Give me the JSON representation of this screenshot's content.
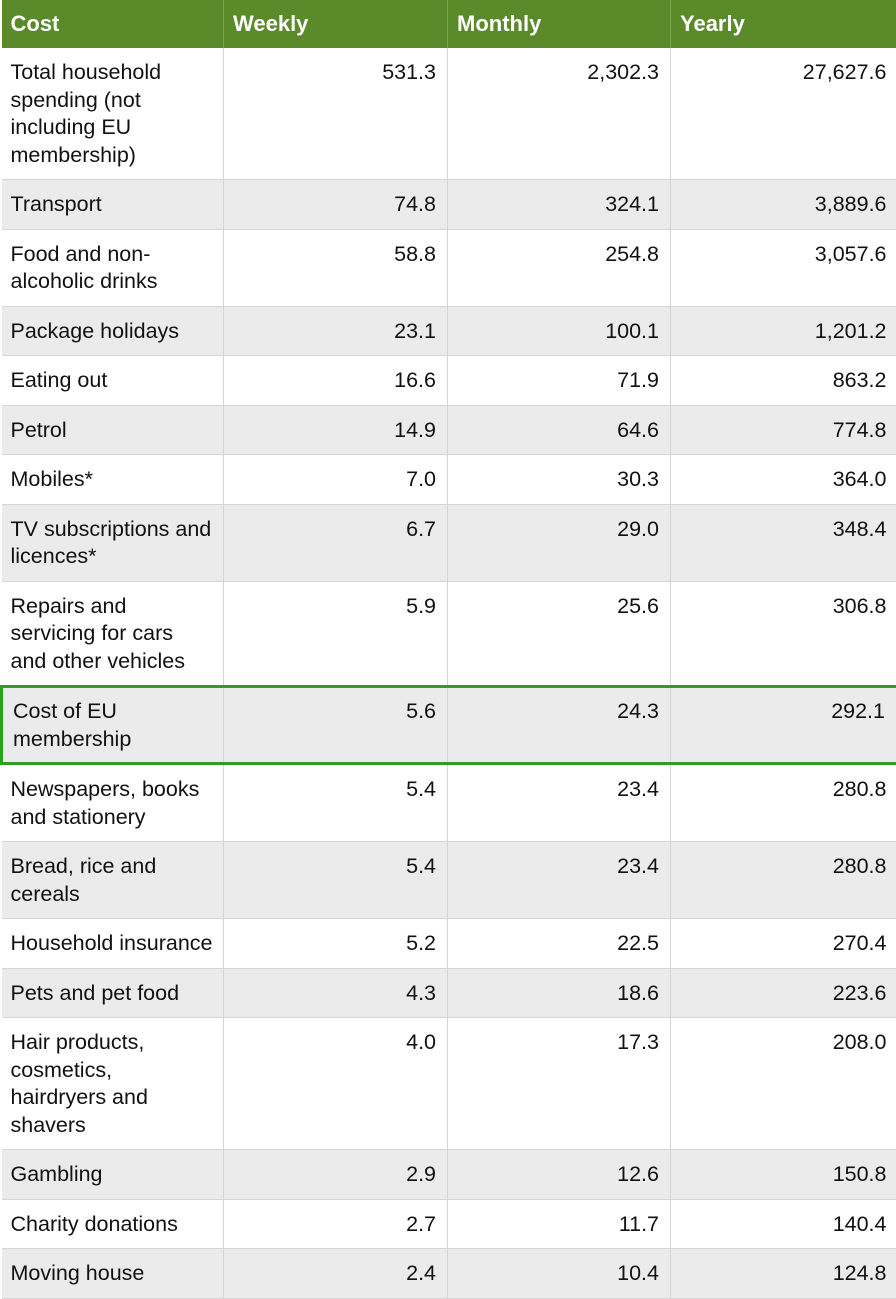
{
  "header": {
    "col_cost": "Cost",
    "col_weekly": "Weekly",
    "col_monthly": "Monthly",
    "col_yearly": "Yearly"
  },
  "accent_color": "#5a8a2a",
  "highlight_color": "#2ea01f",
  "rows": [
    {
      "cost": "Total household spending (not including EU membership)",
      "weekly": "531.3",
      "monthly": "2,302.3",
      "yearly": "27,627.6"
    },
    {
      "cost": "Transport",
      "weekly": "74.8",
      "monthly": "324.1",
      "yearly": "3,889.6"
    },
    {
      "cost": "Food and non-alcoholic drinks",
      "weekly": "58.8",
      "monthly": "254.8",
      "yearly": "3,057.6"
    },
    {
      "cost": "Package holidays",
      "weekly": "23.1",
      "monthly": "100.1",
      "yearly": "1,201.2"
    },
    {
      "cost": "Eating out",
      "weekly": "16.6",
      "monthly": "71.9",
      "yearly": "863.2"
    },
    {
      "cost": "Petrol",
      "weekly": "14.9",
      "monthly": "64.6",
      "yearly": "774.8"
    },
    {
      "cost": "Mobiles*",
      "weekly": "7.0",
      "monthly": "30.3",
      "yearly": "364.0"
    },
    {
      "cost": "TV subscriptions and licences*",
      "weekly": "6.7",
      "monthly": "29.0",
      "yearly": "348.4"
    },
    {
      "cost": "Repairs and servicing for cars and other vehicles",
      "weekly": "5.9",
      "monthly": "25.6",
      "yearly": "306.8"
    },
    {
      "cost": "Cost of EU membership",
      "weekly": "5.6",
      "monthly": "24.3",
      "yearly": "292.1",
      "highlighted": true
    },
    {
      "cost": "Newspapers, books and stationery",
      "weekly": "5.4",
      "monthly": "23.4",
      "yearly": "280.8"
    },
    {
      "cost": "Bread, rice and cereals",
      "weekly": "5.4",
      "monthly": "23.4",
      "yearly": "280.8"
    },
    {
      "cost": "Household insurance",
      "weekly": "5.2",
      "monthly": "22.5",
      "yearly": "270.4"
    },
    {
      "cost": "Pets and pet food",
      "weekly": "4.3",
      "monthly": "18.6",
      "yearly": "223.6"
    },
    {
      "cost": "Hair products, cosmetics, hairdryers and shavers",
      "weekly": "4.0",
      "monthly": "17.3",
      "yearly": "208.0"
    },
    {
      "cost": "Gambling",
      "weekly": "2.9",
      "monthly": "12.6",
      "yearly": "150.8"
    },
    {
      "cost": "Charity donations",
      "weekly": "2.7",
      "monthly": "11.7",
      "yearly": "140.4"
    },
    {
      "cost": "Moving house",
      "weekly": "2.4",
      "monthly": "10.4",
      "yearly": "124.8"
    }
  ]
}
